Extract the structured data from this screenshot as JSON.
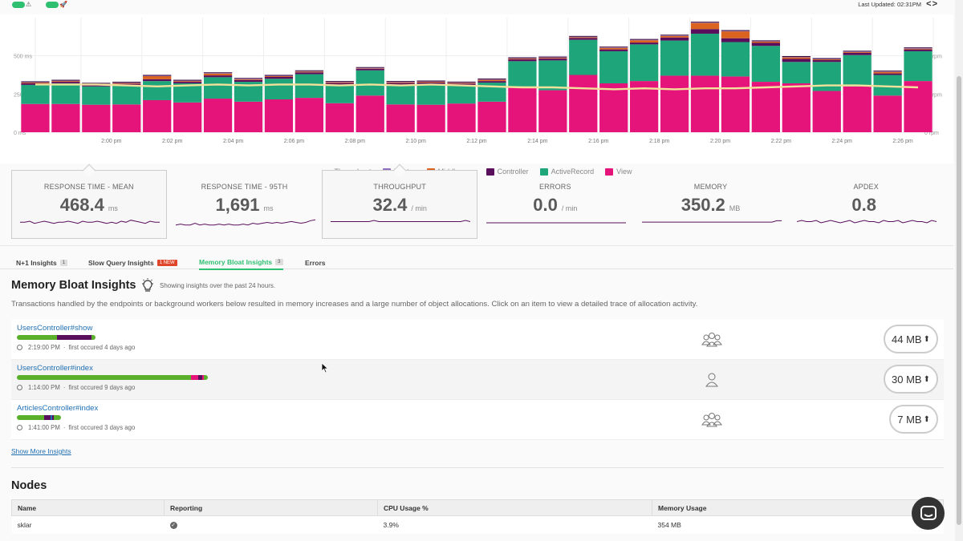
{
  "topbar": {
    "toggles": [
      {
        "name": "alert-toggle",
        "icon": "warning-icon",
        "glyph": "⚠"
      },
      {
        "name": "deploy-toggle",
        "icon": "rocket-icon",
        "glyph": "🚀"
      }
    ],
    "last_updated": "Last Updated: 02:31PM",
    "nav_arrows": "<>"
  },
  "colors": {
    "throughput": "#f2e19a",
    "router": "#8e6cc0",
    "middleware": "#d9631f",
    "controller": "#5a0f5c",
    "activerecord": "#1ea67a",
    "view": "#e5147a",
    "accent": "#2fbf71",
    "link": "#1f6fb2"
  },
  "chart_data": {
    "type": "bar",
    "stacked": true,
    "y_left_ticks": [
      "0 ms",
      "250 ms",
      "500 ms"
    ],
    "y_right_ticks": [
      "0 rpm",
      "20 rpm",
      "40 rpm"
    ],
    "x_ticks": [
      "2:00 pm",
      "2:02 pm",
      "2:04 pm",
      "2:06 pm",
      "2:08 pm",
      "2:10 pm",
      "2:12 pm",
      "2:14 pm",
      "2:16 pm",
      "2:18 pm",
      "2:20 pm",
      "2:22 pm",
      "2:24 pm",
      "2:26 pm"
    ],
    "ylim": [
      0,
      750
    ],
    "series": [
      {
        "name": "View",
        "values": [
          185,
          185,
          180,
          182,
          210,
          195,
          220,
          200,
          215,
          225,
          190,
          240,
          182,
          180,
          188,
          200,
          300,
          275,
          375,
          320,
          335,
          370,
          370,
          365,
          330,
          320,
          270,
          300,
          240,
          335
        ]
      },
      {
        "name": "ActiveRecord",
        "values": [
          125,
          135,
          120,
          125,
          125,
          125,
          140,
          130,
          135,
          155,
          120,
          165,
          130,
          135,
          120,
          125,
          165,
          195,
          230,
          210,
          240,
          230,
          275,
          225,
          235,
          140,
          190,
          205,
          135,
          195
        ]
      },
      {
        "name": "Controller",
        "values": [
          10,
          10,
          10,
          10,
          12,
          10,
          12,
          12,
          12,
          12,
          12,
          10,
          10,
          10,
          10,
          10,
          12,
          12,
          12,
          12,
          12,
          20,
          30,
          25,
          20,
          20,
          12,
          15,
          10,
          12
        ]
      },
      {
        "name": "Middleware",
        "values": [
          5,
          5,
          5,
          5,
          20,
          5,
          12,
          5,
          5,
          5,
          5,
          3,
          5,
          5,
          5,
          8,
          5,
          5,
          5,
          10,
          15,
          10,
          40,
          45,
          8,
          10,
          5,
          5,
          10,
          5
        ]
      },
      {
        "name": "Router",
        "values": [
          3,
          3,
          3,
          3,
          3,
          3,
          3,
          3,
          3,
          3,
          3,
          3,
          3,
          3,
          3,
          3,
          3,
          3,
          3,
          3,
          3,
          3,
          3,
          3,
          3,
          3,
          3,
          3,
          3,
          3
        ]
      }
    ],
    "throughput_rpm": [
      25,
      25,
      25,
      24.5,
      24,
      24.5,
      25,
      24.5,
      25,
      25,
      24.5,
      25,
      24.5,
      25,
      24.5,
      24,
      23.5,
      23.5,
      23,
      22.5,
      23,
      22.5,
      23,
      23,
      23.5,
      24,
      24.5,
      24.5,
      24,
      23.5
    ],
    "legend": [
      "Throughput",
      "Router",
      "Middleware",
      "Controller",
      "ActiveRecord",
      "View"
    ],
    "legend_placement": "bottom"
  },
  "metrics": [
    {
      "title": "RESPONSE TIME - MEAN",
      "value": "468.4",
      "unit": "ms",
      "active": true,
      "spark": [
        5,
        5,
        6,
        4,
        5,
        6,
        5,
        4,
        5,
        5,
        6,
        5,
        4,
        6,
        5,
        5,
        6,
        5,
        4,
        5,
        4,
        6,
        5,
        7,
        6,
        5,
        4,
        6,
        5,
        5
      ]
    },
    {
      "title": "RESPONSE TIME - 95TH",
      "value": "1,691",
      "unit": "ms",
      "active": false,
      "spark": [
        3,
        4,
        3,
        3,
        5,
        3,
        4,
        3,
        3,
        4,
        3,
        4,
        3,
        3,
        4,
        3,
        5,
        4,
        5,
        6,
        5,
        6,
        5,
        6,
        7,
        6,
        5,
        6,
        8,
        9
      ]
    },
    {
      "title": "THROUGHPUT",
      "value": "32.4",
      "unit": "/ min",
      "active": true,
      "spark": [
        5,
        5,
        5,
        5,
        5,
        5,
        5,
        5,
        5,
        6,
        5,
        5,
        5,
        5,
        5,
        5,
        5,
        5,
        5,
        5,
        5,
        5,
        5,
        5,
        5,
        5,
        5,
        5,
        6,
        5
      ]
    },
    {
      "title": "ERRORS",
      "value": "0.0",
      "unit": "/ min",
      "active": false,
      "spark": [
        2,
        2,
        2,
        2,
        2,
        2,
        2,
        2,
        2,
        2,
        2,
        2,
        2,
        2,
        2,
        2,
        2,
        2,
        2,
        2,
        2,
        2,
        2,
        2,
        2,
        2,
        2,
        2,
        2,
        2
      ]
    },
    {
      "title": "MEMORY",
      "value": "350.2",
      "unit": "MB",
      "active": false,
      "spark": [
        4,
        4,
        4,
        4,
        4,
        4,
        4,
        4,
        4,
        4,
        4,
        4,
        4,
        4,
        4,
        4,
        4,
        4,
        4,
        4,
        4,
        4,
        4,
        4,
        4,
        4,
        4,
        4,
        5,
        5
      ]
    },
    {
      "title": "APDEX",
      "value": "0.8",
      "unit": "",
      "active": false,
      "spark": [
        5,
        6,
        5,
        5,
        6,
        4,
        5,
        6,
        5,
        4,
        5,
        6,
        4,
        5,
        6,
        5,
        5,
        4,
        6,
        5,
        5,
        6,
        4,
        5,
        6,
        5,
        5,
        4,
        6,
        5
      ]
    }
  ],
  "tabs": [
    {
      "label": "N+1 Insights",
      "badge": "1",
      "new": false,
      "active": false
    },
    {
      "label": "Slow Query Insights",
      "badge": "1 NEW",
      "new": true,
      "active": false
    },
    {
      "label": "Memory Bloat Insights",
      "badge": "3",
      "new": false,
      "active": true
    },
    {
      "label": "Errors",
      "badge": "",
      "new": false,
      "active": false
    }
  ],
  "insights": {
    "title": "Memory Bloat Insights",
    "subtitle": "Showing insights over the past 24 hours.",
    "description": "Transactions handled by the endpoints or background workers below resulted in memory increases and a large number of object allocations. Click on an item to view a detailed trace of allocation activity.",
    "rows": [
      {
        "name": "UsersController#show",
        "time": "2:19:00 PM",
        "first": "first occured 4 days ago",
        "users_icon": "users-group-icon",
        "memory": "44 MB",
        "memory_mb": 44,
        "bar": [
          {
            "c": "#5aaf2b",
            "f": 0.51
          },
          {
            "c": "#5a0f5c",
            "f": 0.44
          },
          {
            "c": "#5aaf2b",
            "f": 0.05
          }
        ],
        "bar_scale": 0.41
      },
      {
        "name": "UsersController#index",
        "time": "1:14:00 PM",
        "first": "first occured 9 days ago",
        "users_icon": "user-single-icon",
        "memory": "30 MB",
        "memory_mb": 30,
        "bar": [
          {
            "c": "#5aaf2b",
            "f": 0.91
          },
          {
            "c": "#e5147a",
            "f": 0.04
          },
          {
            "c": "#5a0f5c",
            "f": 0.02
          },
          {
            "c": "#e5147a",
            "f": 0.01
          },
          {
            "c": "#5aaf2b",
            "f": 0.02
          }
        ],
        "bar_scale": 1
      },
      {
        "name": "ArticlesController#index",
        "time": "1:41:00 PM",
        "first": "first occured 3 days ago",
        "users_icon": "users-group-icon",
        "memory": "7 MB",
        "memory_mb": 7,
        "bar": [
          {
            "c": "#5aaf2b",
            "f": 0.62
          },
          {
            "c": "#5a0f5c",
            "f": 0.14
          },
          {
            "c": "#1f6fb2",
            "f": 0.04
          },
          {
            "c": "#5a0f5c",
            "f": 0.04
          },
          {
            "c": "#5aaf2b",
            "f": 0.16
          }
        ],
        "bar_scale": 0.23
      }
    ],
    "show_more": "Show More Insights"
  },
  "nodes": {
    "title": "Nodes",
    "columns": [
      "Name",
      "Reporting",
      "CPU Usage %",
      "Memory Usage"
    ],
    "rows": [
      {
        "name": "sklar",
        "reporting": "ok",
        "cpu": "3.9%",
        "memory": "354 MB"
      }
    ]
  }
}
